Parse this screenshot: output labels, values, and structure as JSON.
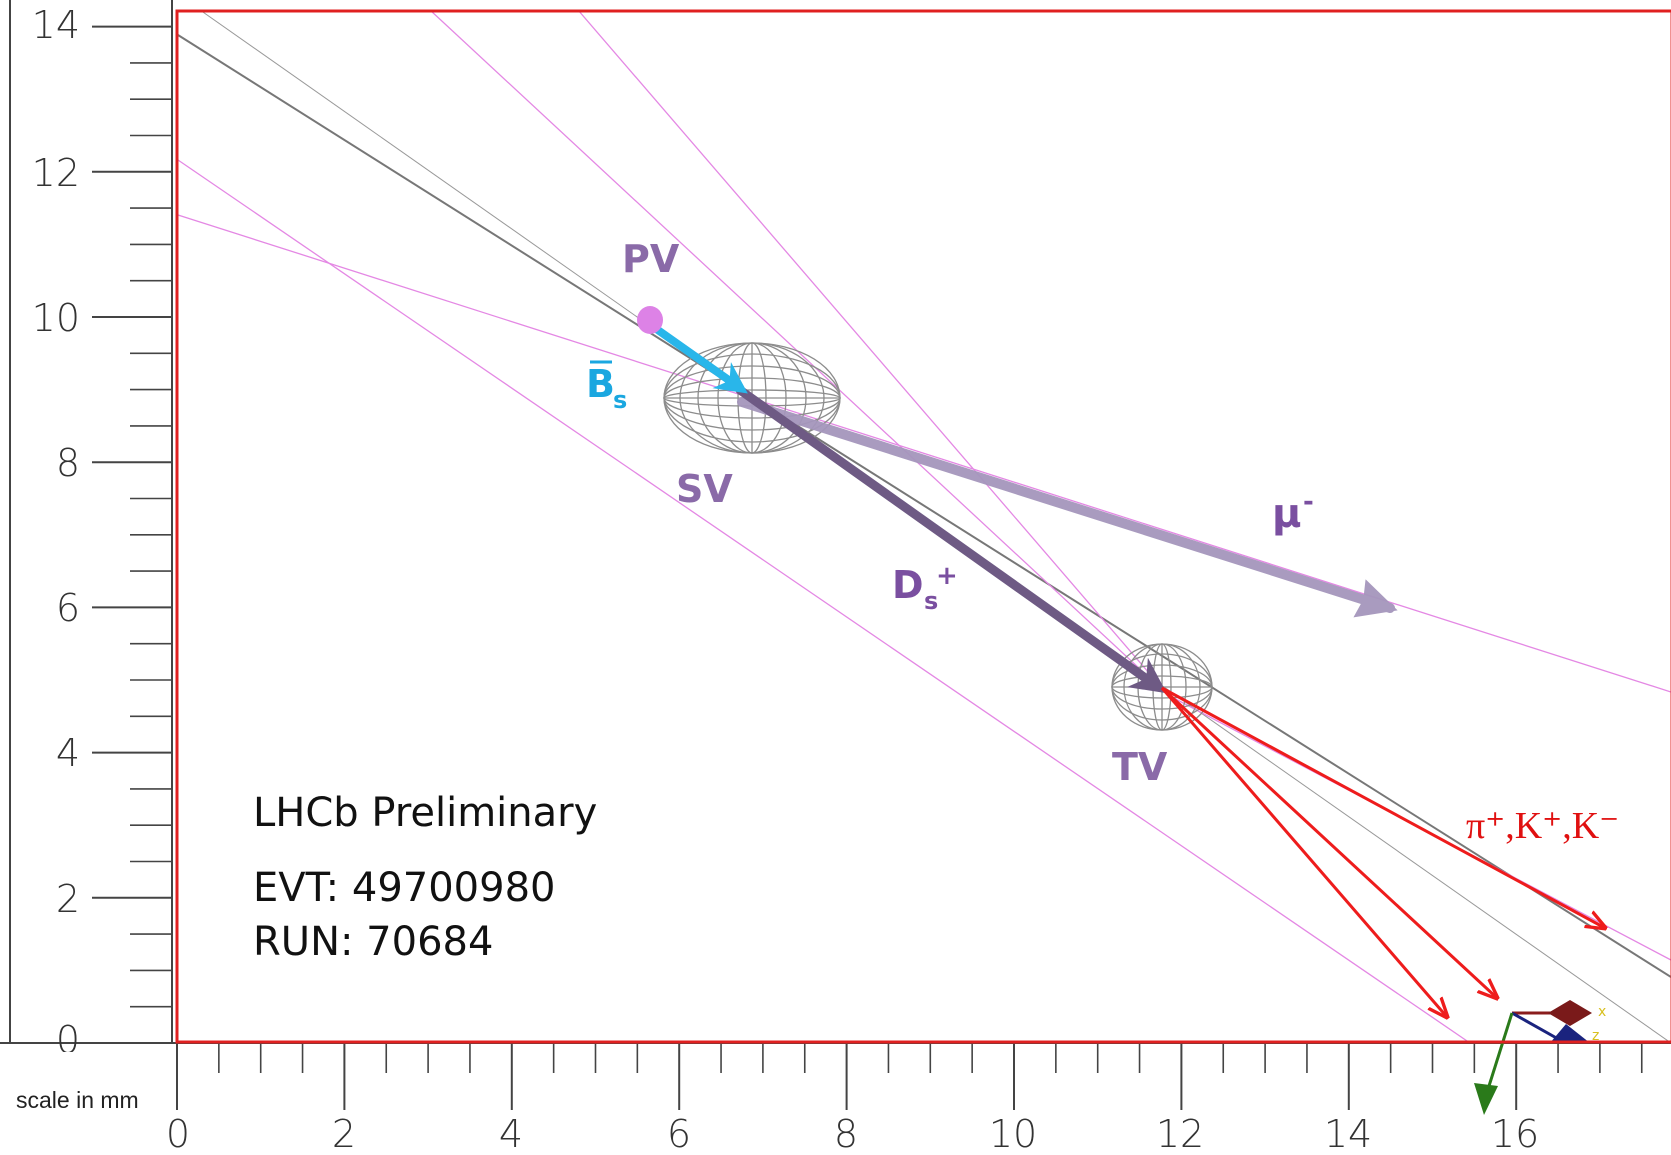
{
  "scale": {
    "label": "scale in mm"
  },
  "axes": {
    "x_ticks": [
      "0",
      "2",
      "4",
      "6",
      "8",
      "10",
      "12",
      "14",
      "16"
    ],
    "y_ticks": [
      "0",
      "2",
      "4",
      "6",
      "8",
      "10",
      "12",
      "14"
    ]
  },
  "labels": {
    "pv": "PV",
    "bs_main": "B",
    "bs_sub": "s",
    "sv": "SV",
    "ds_main": "D",
    "ds_sub": "s",
    "ds_sup": "+",
    "mu_main": "μ",
    "mu_sup": "-",
    "tv": "TV",
    "hadrons": "π⁺,K⁺,K⁻"
  },
  "info": {
    "title": "LHCb Preliminary",
    "event": "EVT: 49700980",
    "run": "RUN: 70684"
  },
  "colors": {
    "frame": "#e02020",
    "bs_arrow": "#29b6ea",
    "ds_arrow": "#6e5a84",
    "mu_arrow": "#a596bc",
    "hadron_tracks": "#ee1c1c",
    "pink_tracks": "#e488e4",
    "grey_tracks": "#777777",
    "vertex_mesh": "#8c8c8c"
  },
  "icons": [
    "axis-gizmo-icon"
  ]
}
